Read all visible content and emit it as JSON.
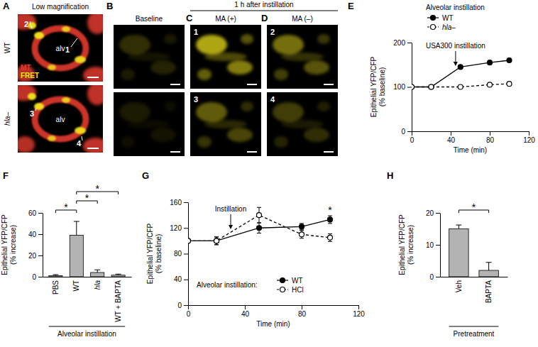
{
  "image_panels": {
    "A": {
      "label": "A",
      "title": "Low magnification",
      "rows": [
        "WT",
        "hla–"
      ],
      "channels": [
        {
          "name": "MT",
          "color": "#e23b2e"
        },
        {
          "name": "FRET",
          "color": "#f3e61e"
        }
      ],
      "region_labels": [
        "alv",
        "alv"
      ],
      "points": [
        [
          "1",
          "2"
        ],
        [
          "3",
          "4"
        ]
      ]
    },
    "B": {
      "label": "B",
      "title": "Baseline"
    },
    "group_title": "1 h after instillation",
    "C": {
      "label": "C",
      "title": "MA (+)",
      "points": [
        "1",
        "3"
      ]
    },
    "D": {
      "label": "D",
      "title": "MA (–)",
      "points": [
        "2",
        "4"
      ]
    }
  },
  "chart_data": [
    {
      "type": "line",
      "panel_label": "E",
      "xlabel": "Time (min)",
      "ylabel": [
        "Epithelial YFP/CFP",
        "(% baseline)"
      ],
      "legend_title": "Alveolar instillation",
      "legend": "top",
      "x": [
        0,
        20,
        50,
        80,
        100
      ],
      "series": [
        {
          "name": "WT",
          "color": "#000000",
          "marker": "circle",
          "line_style": "solid",
          "values": [
            100,
            100,
            145,
            155,
            160
          ]
        },
        {
          "name": "hla–",
          "color": "#000000",
          "marker": "open_circle",
          "line_style": "dashed",
          "values": [
            100,
            100,
            100,
            105,
            107
          ]
        }
      ],
      "xlim": [
        0,
        120
      ],
      "xticks": [
        0,
        40,
        80,
        120
      ],
      "ylim": [
        0,
        200
      ],
      "yticks": [
        0,
        100,
        200
      ],
      "annotations": [
        {
          "text": "USA300 instillation",
          "x": 45
        }
      ]
    },
    {
      "type": "bar",
      "panel_label": "F",
      "ylabel": [
        "Epithelial YFP/CFP",
        "(% increase)"
      ],
      "xlabel": "Alveolar instillation",
      "categories": [
        "PBS",
        "WT",
        "hla",
        "WT + BAPTA"
      ],
      "values": [
        1,
        39,
        4,
        1.5
      ],
      "errors": [
        1,
        13,
        2.5,
        1
      ],
      "color": "#b3b3b3",
      "ylim": [
        0,
        60
      ],
      "yticks": [
        0,
        20,
        40,
        60
      ],
      "significance": [
        {
          "between": [
            "PBS",
            "WT"
          ],
          "label": "*"
        },
        {
          "between": [
            "WT",
            "hla"
          ],
          "label": "*"
        },
        {
          "between": [
            "WT",
            "WT + BAPTA"
          ],
          "label": "*"
        }
      ]
    },
    {
      "type": "line",
      "panel_label": "G",
      "xlabel": "Time (min)",
      "ylabel": [
        "Epithelial YFP/CFP",
        "(% baseline)"
      ],
      "legend_title": "Alveolar instillation:",
      "legend": "bottom",
      "x": [
        0,
        20,
        50,
        80,
        100
      ],
      "series": [
        {
          "name": "WT",
          "color": "#000000",
          "marker": "circle",
          "line_style": "solid",
          "values": [
            100,
            100,
            120,
            122,
            133
          ],
          "errors": [
            3,
            6,
            8,
            5,
            6
          ]
        },
        {
          "name": "HCl",
          "color": "#000000",
          "marker": "open_circle",
          "line_style": "dashed",
          "values": [
            100,
            100,
            140,
            110,
            105
          ],
          "errors": [
            3,
            6,
            12,
            6,
            6
          ]
        }
      ],
      "xlim": [
        0,
        120
      ],
      "xticks": [
        0,
        40,
        80,
        120
      ],
      "ylim": [
        0,
        160
      ],
      "yticks": [
        0,
        40,
        80,
        120,
        160
      ],
      "annotations": [
        {
          "text": "Instillation",
          "x": 30
        }
      ],
      "significance": [
        {
          "x": 100,
          "label": "*"
        }
      ]
    },
    {
      "type": "bar",
      "panel_label": "H",
      "ylabel": [
        "Epithelial YFP/CFP",
        "(% increase)"
      ],
      "xlabel": "Pretreatment",
      "categories": [
        "Veh",
        "BAPTA"
      ],
      "values": [
        15,
        2
      ],
      "errors": [
        1.2,
        2.5
      ],
      "color": "#b3b3b3",
      "ylim": [
        0,
        20
      ],
      "yticks": [
        0,
        10,
        20
      ],
      "significance": [
        {
          "between": [
            "Veh",
            "BAPTA"
          ],
          "label": "*"
        }
      ]
    }
  ]
}
